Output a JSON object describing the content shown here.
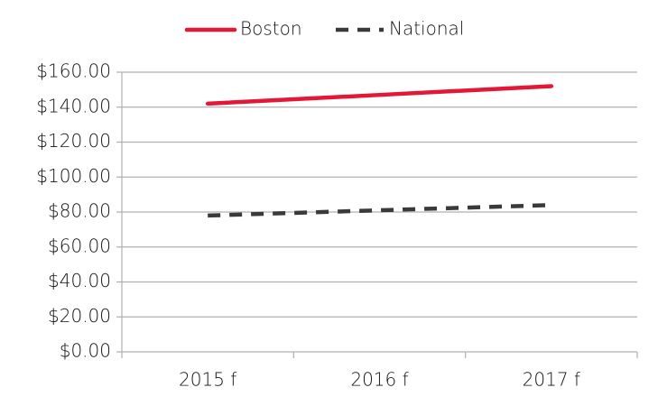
{
  "chart_data": {
    "type": "line",
    "categories": [
      "2015 f",
      "2016 f",
      "2017 f"
    ],
    "series": [
      {
        "name": "Boston",
        "color": "#e31837",
        "dash": false,
        "values": [
          142,
          147,
          152
        ]
      },
      {
        "name": "National",
        "color": "#3a3a3a",
        "dash": true,
        "values": [
          78,
          81,
          84
        ]
      }
    ],
    "ylim": [
      0,
      160
    ],
    "yticks": [
      {
        "value": 0,
        "label": "$0.00"
      },
      {
        "value": 20,
        "label": "$20.00"
      },
      {
        "value": 40,
        "label": "$40.00"
      },
      {
        "value": 60,
        "label": "$60.00"
      },
      {
        "value": 80,
        "label": "$80.00"
      },
      {
        "value": 100,
        "label": "$100.00"
      },
      {
        "value": 120,
        "label": "$120.00"
      },
      {
        "value": 140,
        "label": "$140.00"
      },
      {
        "value": 160,
        "label": "$160.00"
      }
    ],
    "grid": true,
    "legend": "top"
  }
}
